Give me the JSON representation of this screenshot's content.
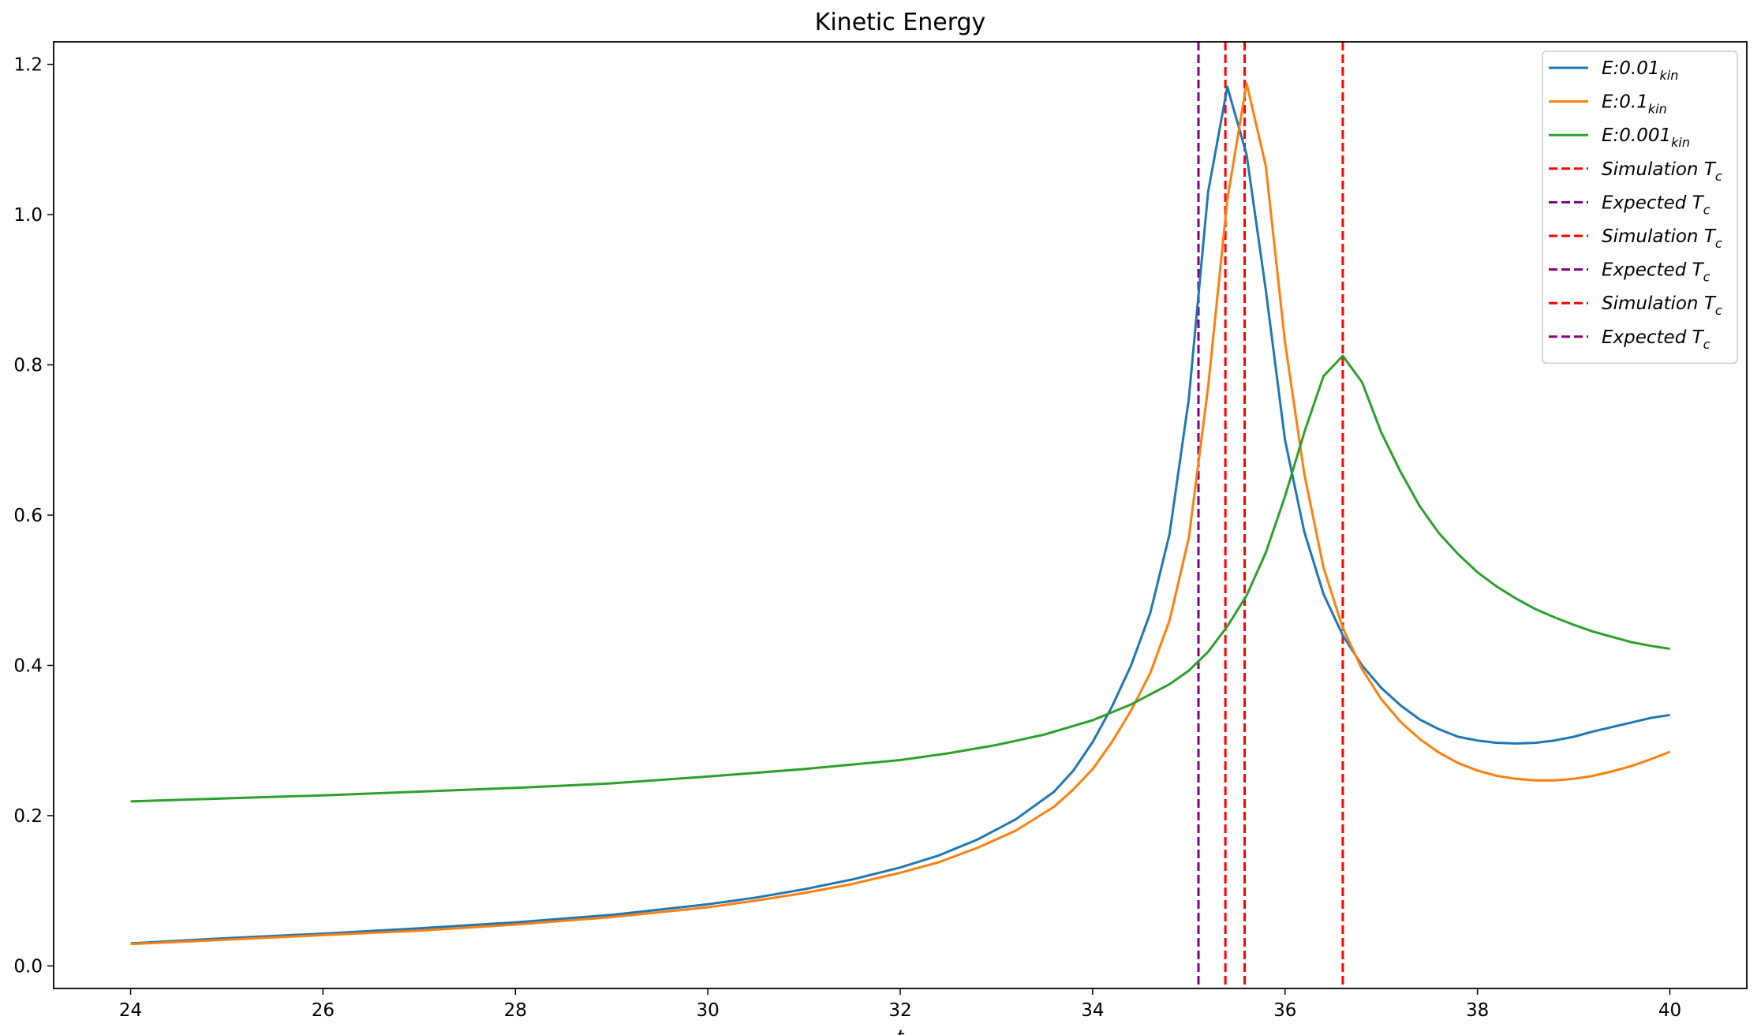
{
  "chart_data": {
    "type": "line",
    "title": "Kinetic Energy",
    "xlabel": "t",
    "ylabel": "",
    "xlim": [
      23.2,
      40.8
    ],
    "ylim": [
      -0.03,
      1.23
    ],
    "grid": false,
    "legend_position": "top-right",
    "x_ticks": [
      24,
      26,
      28,
      30,
      32,
      34,
      36,
      38,
      40
    ],
    "y_ticks": [
      0.0,
      0.2,
      0.4,
      0.6,
      0.8,
      1.0,
      1.2
    ],
    "y_tick_labels": [
      "0.0",
      "0.2",
      "0.4",
      "0.6",
      "0.8",
      "1.0",
      "1.2"
    ],
    "series": [
      {
        "name": "E:0.01",
        "name_sub": "kin",
        "color": "#1f77b4",
        "x": [
          24,
          25,
          26,
          27,
          28,
          29,
          30,
          30.5,
          31,
          31.5,
          32,
          32.4,
          32.8,
          33.2,
          33.6,
          33.8,
          34.0,
          34.2,
          34.4,
          34.6,
          34.8,
          35.0,
          35.2,
          35.4,
          35.6,
          35.8,
          36.0,
          36.2,
          36.4,
          36.6,
          36.8,
          37.0,
          37.2,
          37.4,
          37.6,
          37.8,
          38.0,
          38.2,
          38.4,
          38.6,
          38.8,
          39.0,
          39.2,
          39.4,
          39.6,
          39.8,
          40.0
        ],
        "y": [
          0.03,
          0.037,
          0.043,
          0.05,
          0.058,
          0.068,
          0.082,
          0.091,
          0.102,
          0.115,
          0.131,
          0.147,
          0.168,
          0.195,
          0.232,
          0.26,
          0.298,
          0.345,
          0.4,
          0.47,
          0.575,
          0.755,
          1.03,
          1.17,
          1.08,
          0.9,
          0.7,
          0.578,
          0.495,
          0.44,
          0.4,
          0.37,
          0.347,
          0.328,
          0.315,
          0.305,
          0.3,
          0.297,
          0.296,
          0.297,
          0.3,
          0.305,
          0.312,
          0.318,
          0.324,
          0.33,
          0.334
        ]
      },
      {
        "name": "E:0.1",
        "name_sub": "kin",
        "color": "#ff7f0e",
        "x": [
          24,
          25,
          26,
          27,
          28,
          29,
          30,
          30.5,
          31,
          31.5,
          32,
          32.4,
          32.8,
          33.2,
          33.6,
          33.8,
          34.0,
          34.2,
          34.4,
          34.6,
          34.8,
          35.0,
          35.2,
          35.4,
          35.6,
          35.8,
          36.0,
          36.2,
          36.4,
          36.6,
          36.8,
          37.0,
          37.2,
          37.4,
          37.6,
          37.8,
          38.0,
          38.2,
          38.4,
          38.6,
          38.8,
          39.0,
          39.2,
          39.4,
          39.6,
          39.8,
          40.0
        ],
        "y": [
          0.029,
          0.035,
          0.041,
          0.047,
          0.055,
          0.065,
          0.078,
          0.087,
          0.097,
          0.109,
          0.124,
          0.138,
          0.157,
          0.18,
          0.212,
          0.235,
          0.262,
          0.298,
          0.34,
          0.39,
          0.46,
          0.57,
          0.77,
          1.02,
          1.175,
          1.065,
          0.83,
          0.655,
          0.53,
          0.45,
          0.395,
          0.355,
          0.325,
          0.302,
          0.284,
          0.27,
          0.26,
          0.253,
          0.249,
          0.247,
          0.247,
          0.249,
          0.253,
          0.259,
          0.266,
          0.275,
          0.285
        ]
      },
      {
        "name": "E:0.001",
        "name_sub": "kin",
        "color": "#2ca02c",
        "x": [
          24,
          25,
          26,
          27,
          28,
          29,
          30,
          31,
          32,
          32.5,
          33,
          33.5,
          34.0,
          34.4,
          34.8,
          35.0,
          35.2,
          35.4,
          35.6,
          35.8,
          36.0,
          36.2,
          36.4,
          36.6,
          36.8,
          37.0,
          37.2,
          37.4,
          37.6,
          37.8,
          38.0,
          38.2,
          38.4,
          38.6,
          38.8,
          39.0,
          39.2,
          39.4,
          39.6,
          39.8,
          40.0
        ],
        "y": [
          0.219,
          0.223,
          0.227,
          0.232,
          0.237,
          0.243,
          0.252,
          0.262,
          0.274,
          0.283,
          0.294,
          0.308,
          0.327,
          0.348,
          0.375,
          0.393,
          0.418,
          0.452,
          0.493,
          0.55,
          0.625,
          0.71,
          0.785,
          0.812,
          0.777,
          0.71,
          0.658,
          0.612,
          0.576,
          0.548,
          0.524,
          0.505,
          0.489,
          0.475,
          0.464,
          0.454,
          0.445,
          0.438,
          0.431,
          0.426,
          0.422
        ]
      }
    ],
    "vlines": [
      {
        "x": 35.1,
        "kind": "Expected",
        "name": "Expected",
        "name_sub": "c",
        "color": "#800080"
      },
      {
        "x": 35.38,
        "kind": "Simulation",
        "name": "Simulation",
        "name_sub": "c",
        "color": "#ff0000"
      },
      {
        "x": 35.58,
        "kind": "Simulation",
        "name": "Simulation",
        "name_sub": "c",
        "color": "#ff0000"
      },
      {
        "x": 36.6,
        "kind": "Simulation",
        "name": "Simulation",
        "name_sub": "c",
        "color": "#ff0000"
      }
    ],
    "legend": [
      {
        "label": "E:0.01",
        "sub": "kin",
        "color": "#1f77b4",
        "style": "solid"
      },
      {
        "label": "E:0.1",
        "sub": "kin",
        "color": "#ff7f0e",
        "style": "solid"
      },
      {
        "label": "E:0.001",
        "sub": "kin",
        "color": "#2ca02c",
        "style": "solid"
      },
      {
        "label": "Simulation T",
        "sub": "c",
        "color": "#ff0000",
        "style": "dashed"
      },
      {
        "label": "Expected T",
        "sub": "c",
        "color": "#800080",
        "style": "dashed"
      },
      {
        "label": "Simulation T",
        "sub": "c",
        "color": "#ff0000",
        "style": "dashed"
      },
      {
        "label": "Expected T",
        "sub": "c",
        "color": "#800080",
        "style": "dashed"
      },
      {
        "label": "Simulation T",
        "sub": "c",
        "color": "#ff0000",
        "style": "dashed"
      },
      {
        "label": "Expected T",
        "sub": "c",
        "color": "#800080",
        "style": "dashed"
      }
    ]
  }
}
